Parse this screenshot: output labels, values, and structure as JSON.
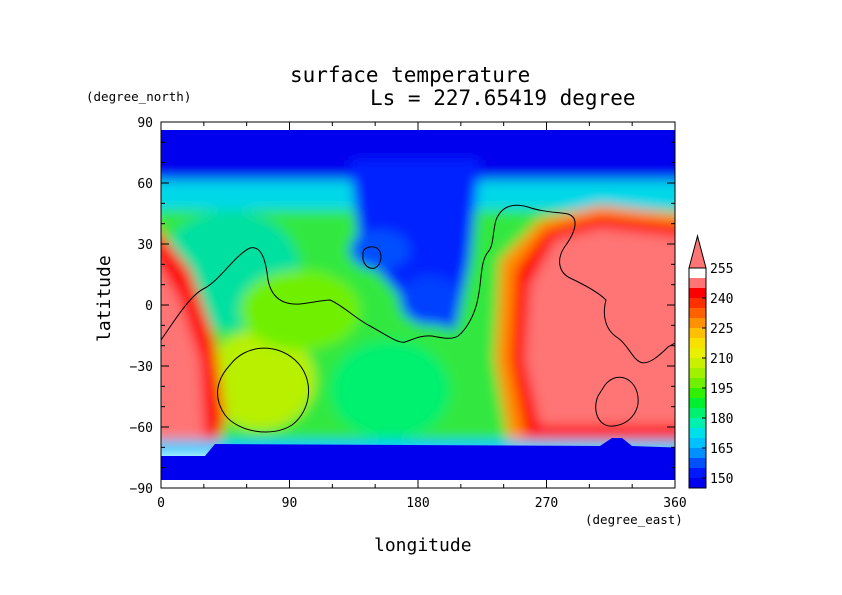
{
  "chart_data": {
    "type": "heatmap",
    "title": "surface temperature",
    "subtitle": "Ls = 227.65419 degree",
    "xlabel": "longitude",
    "ylabel": "latitude",
    "x_unit": "(degree_east)",
    "y_unit": "(degree_north)",
    "xlim": [
      0,
      360
    ],
    "ylim": [
      -90,
      90
    ],
    "x_ticks": [
      "0",
      "90",
      "180",
      "270",
      "360"
    ],
    "y_ticks": [
      "90",
      "60",
      "30",
      "0",
      "−30",
      "−60",
      "−90"
    ],
    "colorbar": {
      "levels": [
        145,
        150,
        155,
        160,
        165,
        170,
        175,
        180,
        185,
        190,
        195,
        200,
        205,
        210,
        215,
        220,
        225,
        230,
        235,
        240,
        245,
        250,
        255
      ],
      "tick_labels": [
        "150",
        "165",
        "180",
        "195",
        "210",
        "225",
        "240",
        "255"
      ],
      "colors": [
        "#0000ee",
        "#0018ff",
        "#0050ff",
        "#0090ff",
        "#00c0ff",
        "#00e0e8",
        "#00f0b0",
        "#00f070",
        "#00f030",
        "#30f000",
        "#70f000",
        "#a0f000",
        "#c8f000",
        "#e8f000",
        "#f8e000",
        "#ffc000",
        "#ff9000",
        "#ff6000",
        "#ff3000",
        "#ff0000",
        "#ff7575"
      ],
      "extend": "max"
    }
  }
}
